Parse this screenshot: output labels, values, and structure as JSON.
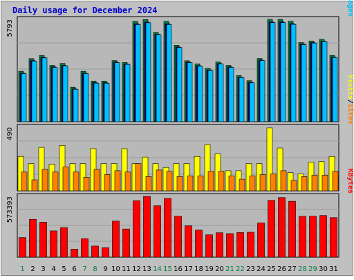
{
  "chart_data": [
    {
      "type": "bar",
      "title": "Daily usage for December 2024",
      "categories": [
        "1",
        "2",
        "3",
        "4",
        "5",
        "6",
        "7",
        "8",
        "9",
        "10",
        "11",
        "12",
        "13",
        "14",
        "15",
        "16",
        "17",
        "18",
        "19",
        "20",
        "21",
        "22",
        "23",
        "24",
        "25",
        "26",
        "27",
        "28",
        "29",
        "30",
        "31"
      ],
      "weekend_days": [
        "1",
        "7",
        "8",
        "14",
        "15",
        "21",
        "22",
        "28",
        "29"
      ],
      "ymax_label": "5793",
      "ymax": 5793,
      "right_label_parts": [
        "Pages",
        "/",
        "Files",
        "/",
        "Hits"
      ],
      "series": [
        {
          "name": "Hits",
          "color": "#008040",
          "values": [
            2850,
            3570,
            3750,
            3190,
            3300,
            1950,
            2850,
            2300,
            2300,
            3460,
            3350,
            5680,
            5780,
            5060,
            5680,
            4330,
            3450,
            3270,
            3020,
            3380,
            3190,
            2610,
            2320,
            3580,
            5790,
            5790,
            5690,
            4480,
            4570,
            4660,
            3750
          ]
        },
        {
          "name": "Files",
          "color": "#000080",
          "values": [
            2750,
            3460,
            3640,
            3100,
            3190,
            1860,
            2750,
            2210,
            2210,
            3370,
            3270,
            5540,
            5640,
            4960,
            5540,
            4230,
            3370,
            3170,
            2930,
            3290,
            3100,
            2520,
            2230,
            3490,
            5650,
            5650,
            5550,
            4390,
            4480,
            4560,
            3660
          ]
        },
        {
          "name": "Pages",
          "color": "#00c0ff",
          "values": [
            2720,
            3430,
            3610,
            3070,
            3160,
            1830,
            2720,
            2180,
            2180,
            3340,
            3240,
            5500,
            5600,
            4930,
            5500,
            4200,
            3340,
            3140,
            2900,
            3260,
            3070,
            2490,
            2200,
            3460,
            5610,
            5610,
            5510,
            4360,
            4450,
            4530,
            3630
          ]
        }
      ]
    },
    {
      "type": "bar",
      "categories": [
        "1",
        "2",
        "3",
        "4",
        "5",
        "6",
        "7",
        "8",
        "9",
        "10",
        "11",
        "12",
        "13",
        "14",
        "15",
        "16",
        "17",
        "18",
        "19",
        "20",
        "21",
        "22",
        "23",
        "24",
        "25",
        "26",
        "27",
        "28",
        "29",
        "30",
        "31"
      ],
      "ymax_label": "490",
      "ymax": 490,
      "right_label_parts": [
        "Sites",
        "/",
        "Visits"
      ],
      "series": [
        {
          "name": "Visits",
          "color": "#ffff00",
          "values": [
            265,
            210,
            335,
            205,
            350,
            210,
            210,
            325,
            210,
            210,
            325,
            210,
            260,
            210,
            180,
            210,
            210,
            265,
            355,
            285,
            155,
            155,
            210,
            210,
            485,
            330,
            140,
            130,
            220,
            225,
            265
          ]
        },
        {
          "name": "Sites",
          "color": "#ff8000",
          "values": [
            145,
            85,
            165,
            145,
            185,
            145,
            105,
            165,
            125,
            155,
            145,
            210,
            110,
            160,
            150,
            110,
            115,
            115,
            150,
            150,
            115,
            90,
            115,
            125,
            130,
            155,
            80,
            110,
            120,
            120,
            150
          ]
        }
      ]
    },
    {
      "type": "bar",
      "categories": [
        "1",
        "2",
        "3",
        "4",
        "5",
        "6",
        "7",
        "8",
        "9",
        "10",
        "11",
        "12",
        "13",
        "14",
        "15",
        "16",
        "17",
        "18",
        "19",
        "20",
        "21",
        "22",
        "23",
        "24",
        "25",
        "26",
        "27",
        "28",
        "29",
        "30",
        "31"
      ],
      "ymax_label": "573393",
      "ymax": 573393,
      "right_label_parts": [
        "KBytes"
      ],
      "series": [
        {
          "name": "KBytes",
          "color": "#ff0000",
          "values": [
            185000,
            357000,
            330000,
            248000,
            279000,
            75000,
            175000,
            105000,
            90000,
            340000,
            266000,
            532000,
            573000,
            485000,
            554000,
            386000,
            296000,
            255000,
            211000,
            230000,
            222000,
            232000,
            235000,
            323000,
            535000,
            562000,
            527000,
            385000,
            387000,
            393000,
            373000
          ]
        }
      ]
    }
  ]
}
